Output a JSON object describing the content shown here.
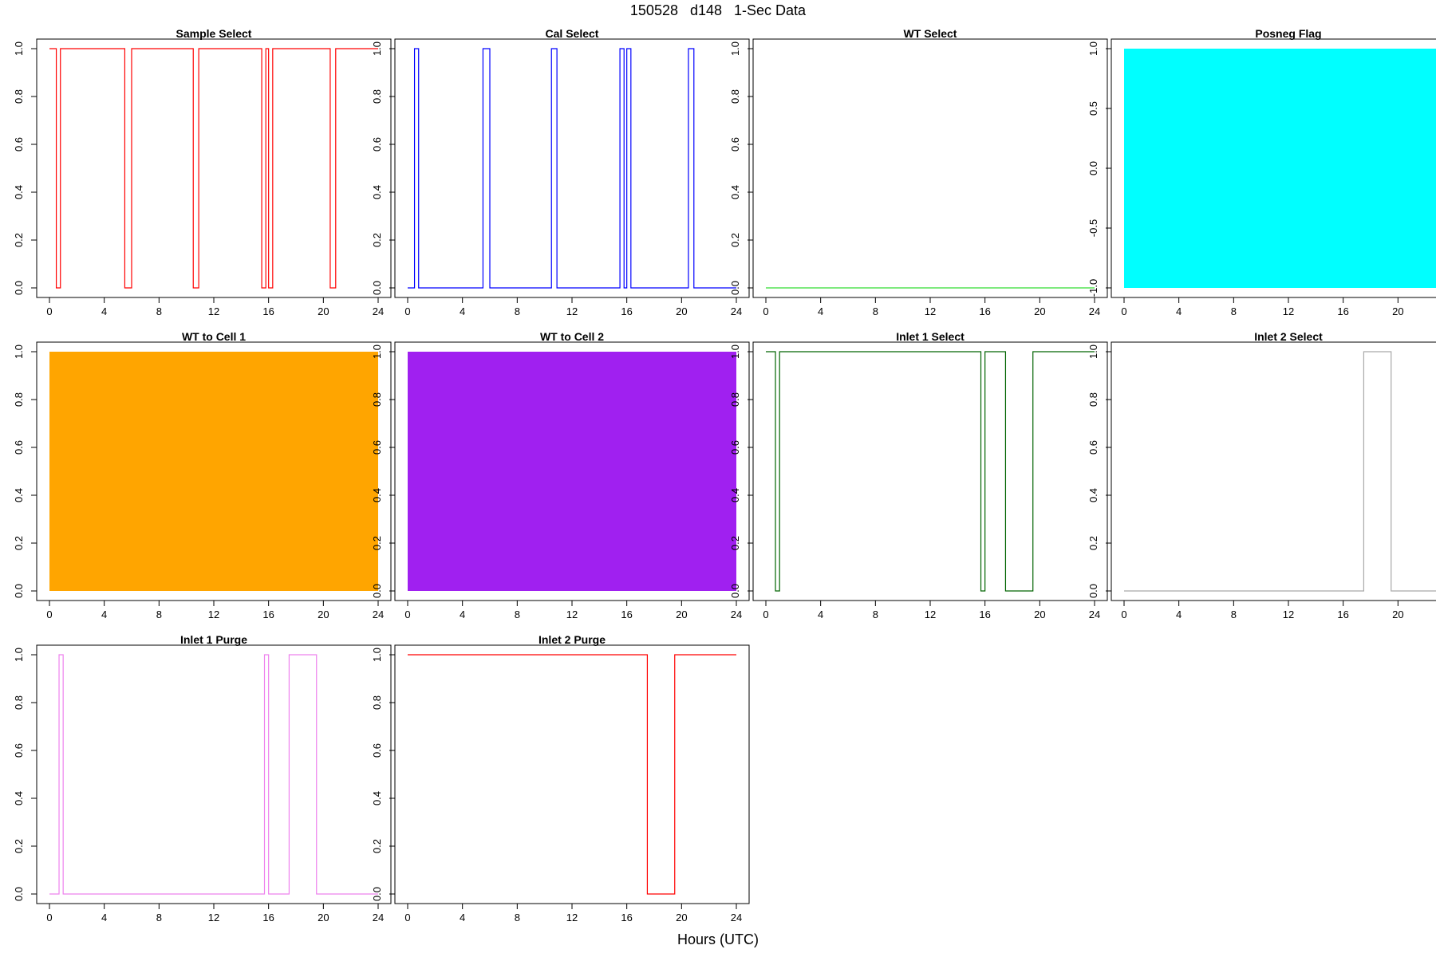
{
  "figure": {
    "title": "150528   d148   1-Sec Data",
    "xlabel": "Hours (UTC)"
  },
  "chart_data": [
    {
      "type": "line",
      "title": "Sample Select",
      "color": "#ff0000",
      "xlim": [
        0,
        24
      ],
      "ylim": [
        0,
        1
      ],
      "x_ticks": [
        0,
        4,
        8,
        12,
        16,
        20,
        24
      ],
      "y_ticks": [
        0,
        0.2,
        0.4,
        0.6,
        0.8,
        1
      ],
      "y_tick_labels": [
        "0.0",
        "0.2",
        "0.4",
        "0.6",
        "0.8",
        "1.0"
      ],
      "x": [
        0,
        0.5,
        0.5,
        0.8,
        0.8,
        5.5,
        5.5,
        6.0,
        6.0,
        10.5,
        10.5,
        10.9,
        10.9,
        15.5,
        15.5,
        15.8,
        15.8,
        16.0,
        16.0,
        16.3,
        16.3,
        20.5,
        20.5,
        20.9,
        20.9,
        24
      ],
      "y": [
        1,
        1,
        0,
        0,
        1,
        1,
        0,
        0,
        1,
        1,
        0,
        0,
        1,
        1,
        0,
        0,
        1,
        1,
        0,
        0,
        1,
        1,
        0,
        0,
        1,
        1
      ]
    },
    {
      "type": "line",
      "title": "Cal Select",
      "color": "#0000ff",
      "xlim": [
        0,
        24
      ],
      "ylim": [
        0,
        1
      ],
      "x_ticks": [
        0,
        4,
        8,
        12,
        16,
        20,
        24
      ],
      "y_ticks": [
        0,
        0.2,
        0.4,
        0.6,
        0.8,
        1
      ],
      "y_tick_labels": [
        "0.0",
        "0.2",
        "0.4",
        "0.6",
        "0.8",
        "1.0"
      ],
      "x": [
        0,
        0.5,
        0.5,
        0.8,
        0.8,
        5.5,
        5.5,
        6.0,
        6.0,
        10.5,
        10.5,
        10.9,
        10.9,
        15.5,
        15.5,
        15.8,
        15.8,
        16.0,
        16.0,
        16.3,
        16.3,
        20.5,
        20.5,
        20.9,
        20.9,
        24
      ],
      "y": [
        0,
        0,
        1,
        1,
        0,
        0,
        1,
        1,
        0,
        0,
        1,
        1,
        0,
        0,
        1,
        1,
        0,
        0,
        1,
        1,
        0,
        0,
        1,
        1,
        0,
        0
      ]
    },
    {
      "type": "line",
      "title": "WT Select",
      "color": "#33dd33",
      "xlim": [
        0,
        24
      ],
      "ylim": [
        0,
        1
      ],
      "x_ticks": [
        0,
        4,
        8,
        12,
        16,
        20,
        24
      ],
      "y_ticks": [
        0,
        0.2,
        0.4,
        0.6,
        0.8,
        1
      ],
      "y_tick_labels": [
        "0.0",
        "0.2",
        "0.4",
        "0.6",
        "0.8",
        "1.0"
      ],
      "x": [
        0,
        24
      ],
      "y": [
        0,
        0
      ]
    },
    {
      "type": "area",
      "title": "Posneg Flag",
      "color": "#00ffff",
      "xlim": [
        0,
        24
      ],
      "ylim": [
        -1,
        1
      ],
      "x_ticks": [
        0,
        4,
        8,
        12,
        16,
        20,
        24
      ],
      "y_ticks": [
        -1,
        -0.5,
        0,
        0.5,
        1
      ],
      "y_tick_labels": [
        "-1.0",
        "-0.5",
        "0.0",
        "0.5",
        "1.0"
      ],
      "x": [
        0,
        24
      ],
      "y_min": -1,
      "y_max": 1
    },
    {
      "type": "area",
      "title": "WT to Cell 1",
      "color": "#ffa500",
      "xlim": [
        0,
        24
      ],
      "ylim": [
        0,
        1
      ],
      "x_ticks": [
        0,
        4,
        8,
        12,
        16,
        20,
        24
      ],
      "y_ticks": [
        0,
        0.2,
        0.4,
        0.6,
        0.8,
        1
      ],
      "y_tick_labels": [
        "0.0",
        "0.2",
        "0.4",
        "0.6",
        "0.8",
        "1.0"
      ],
      "x": [
        0,
        24
      ],
      "y_min": 0,
      "y_max": 1
    },
    {
      "type": "area",
      "title": "WT to Cell 2",
      "color": "#a020f0",
      "xlim": [
        0,
        24
      ],
      "ylim": [
        0,
        1
      ],
      "x_ticks": [
        0,
        4,
        8,
        12,
        16,
        20,
        24
      ],
      "y_ticks": [
        0,
        0.2,
        0.4,
        0.6,
        0.8,
        1
      ],
      "y_tick_labels": [
        "0.0",
        "0.2",
        "0.4",
        "0.6",
        "0.8",
        "1.0"
      ],
      "x": [
        0,
        24
      ],
      "y_min": 0,
      "y_max": 1
    },
    {
      "type": "line",
      "title": "Inlet 1 Select",
      "color": "#006400",
      "xlim": [
        0,
        24
      ],
      "ylim": [
        0,
        1
      ],
      "x_ticks": [
        0,
        4,
        8,
        12,
        16,
        20,
        24
      ],
      "y_ticks": [
        0,
        0.2,
        0.4,
        0.6,
        0.8,
        1
      ],
      "y_tick_labels": [
        "0.0",
        "0.2",
        "0.4",
        "0.6",
        "0.8",
        "1.0"
      ],
      "x": [
        0,
        0.7,
        0.7,
        1.0,
        1.0,
        15.7,
        15.7,
        16.0,
        16.0,
        17.5,
        17.5,
        19.5,
        19.5,
        24
      ],
      "y": [
        1,
        1,
        0,
        0,
        1,
        1,
        0,
        0,
        1,
        1,
        0,
        0,
        1,
        1
      ]
    },
    {
      "type": "line",
      "title": "Inlet 2 Select",
      "color": "#a9a9a9",
      "xlim": [
        0,
        24
      ],
      "ylim": [
        0,
        1
      ],
      "x_ticks": [
        0,
        4,
        8,
        12,
        16,
        20,
        24
      ],
      "y_ticks": [
        0,
        0.2,
        0.4,
        0.6,
        0.8,
        1
      ],
      "y_tick_labels": [
        "0.0",
        "0.2",
        "0.4",
        "0.6",
        "0.8",
        "1.0"
      ],
      "x": [
        0,
        17.5,
        17.5,
        19.5,
        19.5,
        24
      ],
      "y": [
        0,
        0,
        1,
        1,
        0,
        0
      ]
    },
    {
      "type": "line",
      "title": "Inlet 1 Purge",
      "color": "#ee82ee",
      "xlim": [
        0,
        24
      ],
      "ylim": [
        0,
        1
      ],
      "x_ticks": [
        0,
        4,
        8,
        12,
        16,
        20,
        24
      ],
      "y_ticks": [
        0,
        0.2,
        0.4,
        0.6,
        0.8,
        1
      ],
      "y_tick_labels": [
        "0.0",
        "0.2",
        "0.4",
        "0.6",
        "0.8",
        "1.0"
      ],
      "x": [
        0,
        0.7,
        0.7,
        1.0,
        1.0,
        15.7,
        15.7,
        16.0,
        16.0,
        17.5,
        17.5,
        19.5,
        19.5,
        24
      ],
      "y": [
        0,
        0,
        1,
        1,
        0,
        0,
        1,
        1,
        0,
        0,
        1,
        1,
        0,
        0
      ]
    },
    {
      "type": "line",
      "title": "Inlet 2 Purge",
      "color": "#ff0000",
      "xlim": [
        0,
        24
      ],
      "ylim": [
        0,
        1
      ],
      "x_ticks": [
        0,
        4,
        8,
        12,
        16,
        20,
        24
      ],
      "y_ticks": [
        0,
        0.2,
        0.4,
        0.6,
        0.8,
        1
      ],
      "y_tick_labels": [
        "0.0",
        "0.2",
        "0.4",
        "0.6",
        "0.8",
        "1.0"
      ],
      "x": [
        0,
        17.5,
        17.5,
        19.5,
        19.5,
        24
      ],
      "y": [
        1,
        1,
        0,
        0,
        1,
        1
      ]
    }
  ]
}
